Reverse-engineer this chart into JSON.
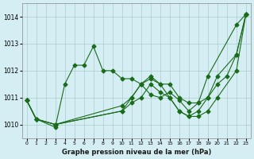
{
  "background_color": "#d4eef4",
  "grid_color": "#aacccc",
  "line_color": "#1a6b1a",
  "title": "Graphe pression niveau de la mer (hPa)",
  "xlabel_hours": [
    0,
    1,
    2,
    3,
    4,
    5,
    6,
    7,
    8,
    9,
    10,
    11,
    12,
    13,
    14,
    15,
    16,
    17,
    18,
    19,
    20,
    21,
    22,
    23
  ],
  "ylim": [
    1009.5,
    1014.5
  ],
  "yticks": [
    1010,
    1011,
    1012,
    1013,
    1014
  ],
  "series": [
    [
      1010.9,
      1010.2,
      null,
      1009.9,
      1011.5,
      1012.2,
      1012.2,
      1012.9,
      1012.0,
      1012.0,
      1011.7,
      1011.7,
      1011.5,
      1011.1,
      1011.0,
      1011.2,
      1010.9,
      1010.5,
      1010.8,
      1011.8,
      null,
      null,
      1013.7,
      1014.1
    ],
    [
      1010.9,
      1010.2,
      null,
      1010.0,
      null,
      null,
      null,
      null,
      null,
      null,
      1010.5,
      1011.0,
      1011.5,
      1011.8,
      1011.5,
      1011.5,
      1011.0,
      1010.8,
      1010.8,
      1011.0,
      1011.5,
      1011.8,
      1012.6,
      1014.1
    ],
    [
      1010.9,
      1010.2,
      null,
      1010.0,
      null,
      null,
      null,
      null,
      null,
      null,
      1010.7,
      1011.0,
      1011.5,
      1011.7,
      1011.5,
      1011.0,
      1010.5,
      1010.3,
      1010.5,
      1011.0,
      1011.8,
      null,
      1012.6,
      1014.1
    ],
    [
      1010.9,
      1010.2,
      null,
      1010.0,
      null,
      null,
      null,
      null,
      null,
      null,
      1010.5,
      1010.8,
      1011.0,
      1011.5,
      1011.2,
      1011.0,
      1010.5,
      1010.3,
      1010.3,
      1010.5,
      1011.0,
      null,
      1012.0,
      1014.1
    ]
  ]
}
